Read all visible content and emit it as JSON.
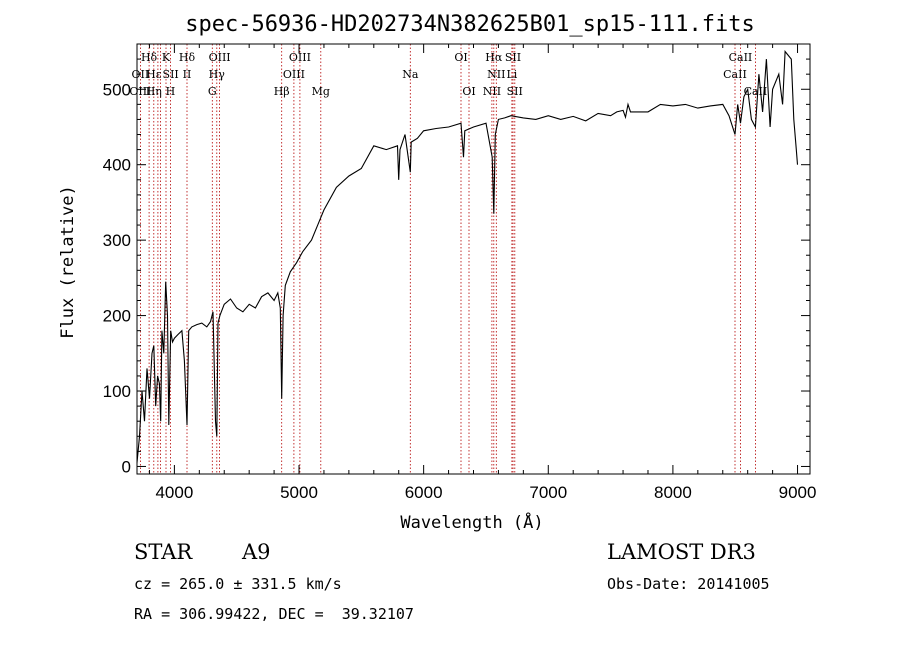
{
  "chart_data": {
    "type": "line",
    "title": "spec-56936-HD202734N382625B01_sp15-111.fits",
    "xlabel": "Wavelength (Å)",
    "ylabel": "Flux (relative)",
    "xlim": [
      3700,
      9100
    ],
    "ylim": [
      -10,
      560
    ],
    "xticks": [
      4000,
      5000,
      6000,
      7000,
      8000,
      9000
    ],
    "yticks": [
      0,
      100,
      200,
      300,
      400,
      500
    ],
    "series": [
      {
        "name": "spectrum",
        "x": [
          3700,
          3720,
          3740,
          3760,
          3780,
          3800,
          3820,
          3835,
          3850,
          3865,
          3880,
          3890,
          3900,
          3915,
          3930,
          3945,
          3955,
          3970,
          3985,
          4000,
          4030,
          4060,
          4080,
          4101,
          4115,
          4140,
          4180,
          4220,
          4260,
          4290,
          4310,
          4330,
          4340,
          4350,
          4365,
          4400,
          4450,
          4500,
          4550,
          4600,
          4650,
          4700,
          4750,
          4800,
          4830,
          4850,
          4861,
          4872,
          4890,
          4930,
          4980,
          5030,
          5100,
          5150,
          5200,
          5300,
          5400,
          5500,
          5600,
          5700,
          5790,
          5800,
          5810,
          5850,
          5893,
          5900,
          5950,
          6000,
          6100,
          6200,
          6300,
          6320,
          6330,
          6400,
          6500,
          6550,
          6563,
          6575,
          6600,
          6650,
          6700,
          6800,
          6900,
          7000,
          7100,
          7200,
          7300,
          7400,
          7500,
          7550,
          7600,
          7620,
          7640,
          7660,
          7700,
          7800,
          7900,
          8000,
          8100,
          8200,
          8300,
          8400,
          8450,
          8498,
          8520,
          8542,
          8570,
          8600,
          8630,
          8662,
          8690,
          8720,
          8750,
          8780,
          8800,
          8850,
          8880,
          8900,
          8950,
          8970,
          8990,
          9000
        ],
        "values": [
          5,
          40,
          100,
          60,
          130,
          90,
          150,
          160,
          80,
          120,
          110,
          60,
          180,
          150,
          245,
          200,
          55,
          180,
          165,
          170,
          175,
          180,
          140,
          55,
          180,
          185,
          188,
          190,
          185,
          192,
          205,
          60,
          40,
          190,
          200,
          215,
          222,
          210,
          205,
          215,
          210,
          225,
          230,
          220,
          230,
          210,
          90,
          200,
          240,
          258,
          270,
          285,
          300,
          320,
          340,
          370,
          385,
          395,
          425,
          420,
          425,
          380,
          420,
          440,
          390,
          430,
          435,
          445,
          448,
          450,
          455,
          410,
          445,
          450,
          455,
          410,
          335,
          440,
          460,
          462,
          465,
          462,
          460,
          465,
          460,
          464,
          458,
          468,
          465,
          470,
          472,
          463,
          480,
          470,
          470,
          470,
          480,
          478,
          480,
          475,
          478,
          480,
          465,
          440,
          480,
          455,
          490,
          500,
          460,
          450,
          520,
          470,
          540,
          450,
          500,
          520,
          480,
          550,
          540,
          460,
          420,
          400
        ]
      }
    ],
    "lines": [
      {
        "name": "Hδ",
        "wl": 3797,
        "row": 1
      },
      {
        "name": "OII",
        "wl": 3727,
        "row": 2
      },
      {
        "name": "OIII",
        "wl": 3727,
        "row": 3
      },
      {
        "name": "Hε",
        "wl": 3835,
        "row": 2
      },
      {
        "name": "Hη",
        "wl": 3835,
        "row": 3
      },
      {
        "name": "K",
        "wl": 3933,
        "row": 1
      },
      {
        "name": "SII",
        "wl": 3970,
        "row": 2
      },
      {
        "name": "H",
        "wl": 3968,
        "row": 3
      },
      {
        "name": "Hδ",
        "wl": 4101,
        "row": 1
      },
      {
        "name": "II",
        "wl": 4101,
        "row": 2
      },
      {
        "name": "OIII",
        "wl": 4363,
        "row": 1
      },
      {
        "name": "Hγ",
        "wl": 4340,
        "row": 2
      },
      {
        "name": "G",
        "wl": 4304,
        "row": 3
      },
      {
        "name": "OIII",
        "wl": 5007,
        "row": 1
      },
      {
        "name": "OIII",
        "wl": 4959,
        "row": 2
      },
      {
        "name": "Hβ",
        "wl": 4861,
        "row": 3
      },
      {
        "name": "Mg",
        "wl": 5175,
        "row": 3
      },
      {
        "name": "Na",
        "wl": 5893,
        "row": 2
      },
      {
        "name": "OI",
        "wl": 6300,
        "row": 1
      },
      {
        "name": "OI",
        "wl": 6364,
        "row": 3
      },
      {
        "name": "Hα",
        "wl": 6563,
        "row": 1
      },
      {
        "name": "SII",
        "wl": 6717,
        "row": 1
      },
      {
        "name": "NII",
        "wl": 6583,
        "row": 2
      },
      {
        "name": "Li",
        "wl": 6708,
        "row": 2
      },
      {
        "name": "NII",
        "wl": 6548,
        "row": 3
      },
      {
        "name": "SII",
        "wl": 6731,
        "row": 3
      },
      {
        "name": "CaII",
        "wl": 8542,
        "row": 1
      },
      {
        "name": "CaII",
        "wl": 8498,
        "row": 2
      },
      {
        "name": "CaII",
        "wl": 8662,
        "row": 3
      }
    ],
    "marker_lines": [
      3727,
      3797,
      3835,
      3868,
      3889,
      3933,
      3968,
      4101,
      4304,
      4340,
      4363,
      4861,
      4959,
      5007,
      5175,
      5893,
      6300,
      6364,
      6548,
      6563,
      6583,
      6708,
      6717,
      6731,
      8498,
      8542,
      8662
    ]
  },
  "info": {
    "object_type": "STAR",
    "spectral_class": "A9",
    "survey": "LAMOST DR3",
    "cz": "cz = 265.0 ± 331.5 km/s",
    "obs_date": "Obs-Date: 20141005",
    "coords": "RA = 306.99422, DEC =  39.32107"
  }
}
